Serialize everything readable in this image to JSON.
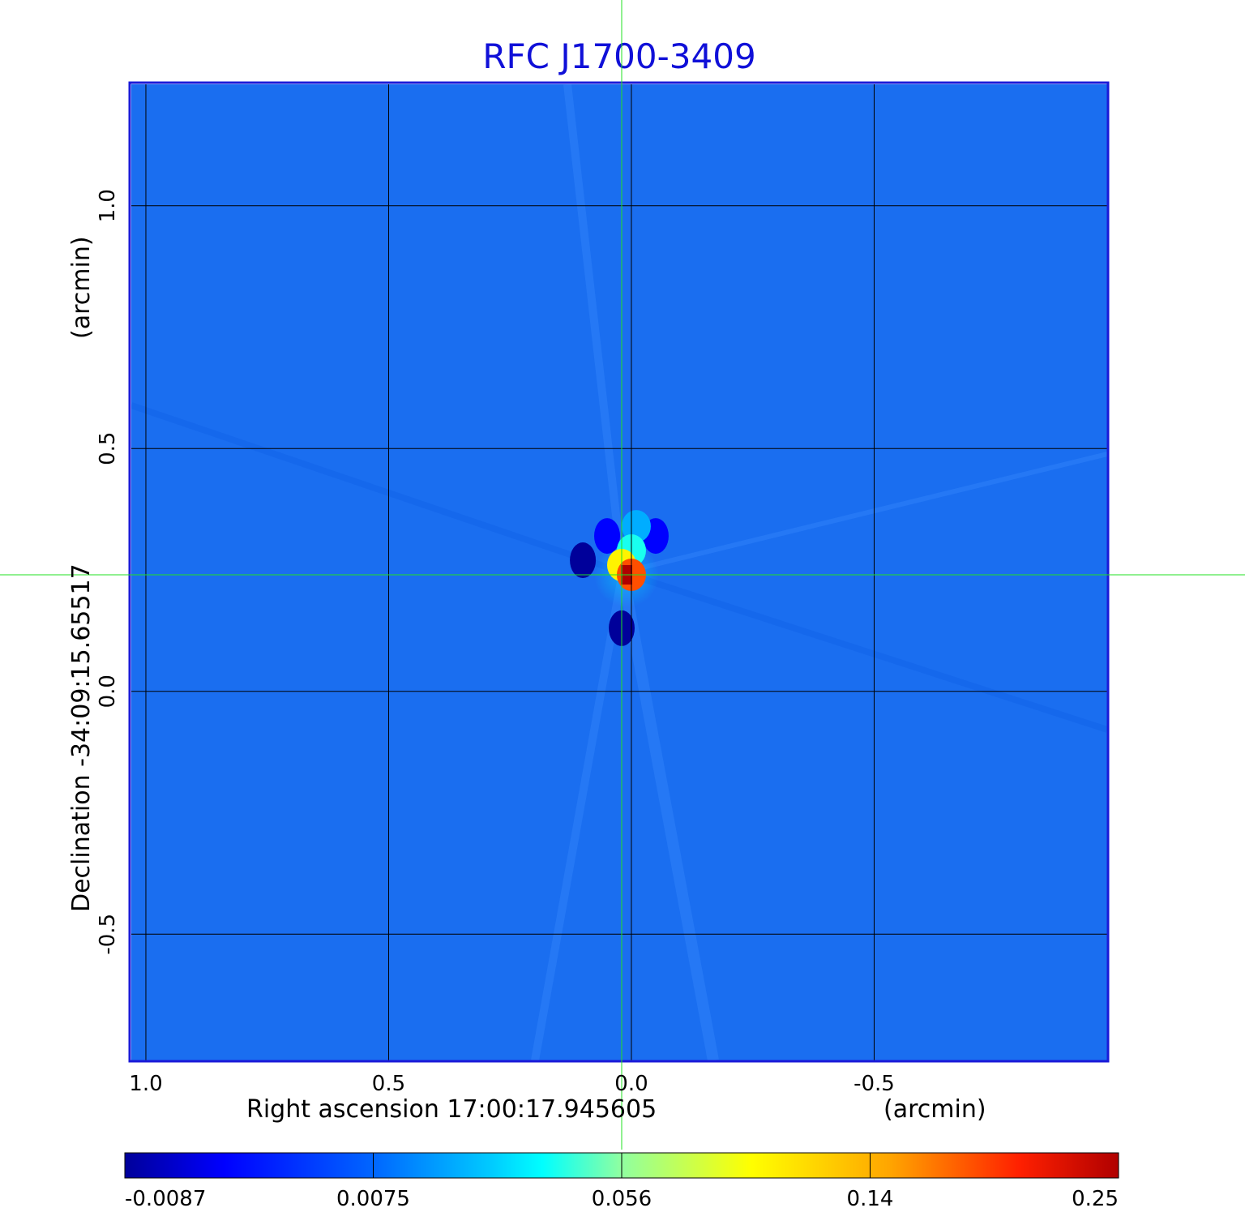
{
  "chart_data": {
    "type": "heatmap",
    "title": "RFC J1700-3409",
    "xlabel": "Right ascension  17:00:17.945605",
    "xunit": "(arcmin)",
    "ylabel": "Declination  -34:09:15.65517",
    "yunit": "(arcmin)",
    "x_ticks": [
      {
        "value": 1.0,
        "label": "1.0"
      },
      {
        "value": 0.5,
        "label": "0.5"
      },
      {
        "value": 0.0,
        "label": "0.0"
      },
      {
        "value": -0.5,
        "label": "-0.5"
      }
    ],
    "y_ticks": [
      {
        "value": 1.0,
        "label": "1.0"
      },
      {
        "value": 0.5,
        "label": "0.5"
      },
      {
        "value": 0.0,
        "label": "0.0"
      },
      {
        "value": -0.5,
        "label": "-0.5"
      }
    ],
    "xlim": [
      1.03,
      -0.98
    ],
    "ylim": [
      -0.76,
      1.25
    ],
    "grid": true,
    "crosshair": {
      "x": 0.02,
      "y": 0.24
    },
    "colorbar": {
      "colormap": "jet",
      "ticks": [
        {
          "label": "-0.0087"
        },
        {
          "label": "0.0075"
        },
        {
          "label": "0.056"
        },
        {
          "label": "0.14"
        },
        {
          "label": "0.25"
        }
      ]
    },
    "background_color": "#1a6ef0",
    "peak": {
      "x": 0.01,
      "y": 0.24,
      "value": 0.25
    },
    "features": [
      {
        "x": 0.0,
        "y": 0.24,
        "value": 0.18
      },
      {
        "x": 0.02,
        "y": 0.26,
        "value": 0.1
      },
      {
        "x": 0.0,
        "y": 0.29,
        "value": 0.04
      },
      {
        "x": -0.01,
        "y": 0.34,
        "value": 0.02
      },
      {
        "x": 0.02,
        "y": 0.13,
        "value": -0.0087
      },
      {
        "x": 0.1,
        "y": 0.27,
        "value": -0.0087
      },
      {
        "x": -0.05,
        "y": 0.32,
        "value": -0.006
      },
      {
        "x": 0.05,
        "y": 0.32,
        "value": -0.006
      }
    ]
  }
}
